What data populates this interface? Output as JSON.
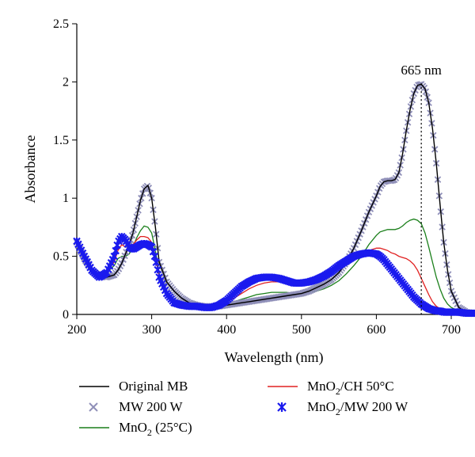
{
  "chart_data": {
    "type": "line",
    "xlabel": "Wavelength (nm)",
    "ylabel": "Absorbance",
    "xlim": [
      200,
      750
    ],
    "ylim": [
      0,
      2.5
    ],
    "xticks": [
      "200",
      "300",
      "400",
      "500",
      "600",
      "700"
    ],
    "yticks": [
      "0",
      "0.5",
      "1",
      "1.5",
      "2",
      "2.5"
    ],
    "annotation": {
      "text": "665 nm",
      "x": 660,
      "y": 1.96
    },
    "x": [
      200,
      210,
      220,
      230,
      240,
      250,
      255,
      260,
      265,
      270,
      275,
      280,
      285,
      290,
      295,
      300,
      305,
      310,
      320,
      330,
      340,
      350,
      360,
      370,
      380,
      390,
      400,
      410,
      420,
      430,
      440,
      450,
      460,
      470,
      480,
      490,
      500,
      510,
      520,
      530,
      540,
      550,
      560,
      570,
      580,
      590,
      600,
      605,
      610,
      615,
      620,
      625,
      630,
      635,
      640,
      645,
      650,
      655,
      660,
      665,
      670,
      675,
      680,
      685,
      690,
      695,
      700,
      710,
      720,
      730,
      740,
      750
    ],
    "series": [
      {
        "name": "Original MB",
        "color": "#000000",
        "style": "line",
        "values": [
          0.62,
          0.48,
          0.38,
          0.33,
          0.32,
          0.34,
          0.38,
          0.44,
          0.52,
          0.6,
          0.7,
          0.84,
          0.98,
          1.08,
          1.11,
          1.0,
          0.75,
          0.45,
          0.28,
          0.2,
          0.14,
          0.1,
          0.08,
          0.07,
          0.07,
          0.07,
          0.08,
          0.09,
          0.1,
          0.11,
          0.12,
          0.13,
          0.14,
          0.15,
          0.16,
          0.17,
          0.18,
          0.2,
          0.23,
          0.26,
          0.3,
          0.36,
          0.45,
          0.57,
          0.72,
          0.88,
          1.02,
          1.1,
          1.14,
          1.15,
          1.15,
          1.16,
          1.22,
          1.38,
          1.58,
          1.76,
          1.9,
          1.97,
          1.98,
          1.94,
          1.82,
          1.6,
          1.3,
          0.95,
          0.62,
          0.38,
          0.2,
          0.06,
          0.02,
          0.01,
          0.01,
          0.01
        ]
      },
      {
        "name": "MW 200 W",
        "color": "#8f8fb8",
        "style": "marker-x",
        "values": [
          0.62,
          0.48,
          0.38,
          0.33,
          0.32,
          0.34,
          0.38,
          0.44,
          0.52,
          0.6,
          0.7,
          0.84,
          0.98,
          1.08,
          1.11,
          1.0,
          0.75,
          0.45,
          0.28,
          0.2,
          0.14,
          0.1,
          0.08,
          0.07,
          0.07,
          0.07,
          0.08,
          0.09,
          0.1,
          0.11,
          0.12,
          0.13,
          0.14,
          0.15,
          0.16,
          0.17,
          0.18,
          0.2,
          0.23,
          0.26,
          0.3,
          0.36,
          0.45,
          0.57,
          0.72,
          0.88,
          1.02,
          1.1,
          1.14,
          1.15,
          1.15,
          1.16,
          1.22,
          1.38,
          1.58,
          1.76,
          1.9,
          1.97,
          1.98,
          1.94,
          1.82,
          1.6,
          1.3,
          0.95,
          0.62,
          0.38,
          0.2,
          0.06,
          0.02,
          0.01,
          0.01,
          0.01
        ]
      },
      {
        "name": "MnO2 (25°C)",
        "color": "#1a7f1a",
        "style": "line",
        "values": [
          0.62,
          0.48,
          0.38,
          0.34,
          0.36,
          0.42,
          0.48,
          0.5,
          0.5,
          0.52,
          0.58,
          0.66,
          0.72,
          0.76,
          0.75,
          0.7,
          0.55,
          0.35,
          0.2,
          0.13,
          0.09,
          0.07,
          0.06,
          0.06,
          0.07,
          0.08,
          0.09,
          0.11,
          0.13,
          0.15,
          0.17,
          0.18,
          0.19,
          0.19,
          0.19,
          0.18,
          0.18,
          0.19,
          0.2,
          0.22,
          0.25,
          0.29,
          0.35,
          0.42,
          0.5,
          0.6,
          0.68,
          0.71,
          0.72,
          0.73,
          0.73,
          0.73,
          0.74,
          0.76,
          0.79,
          0.81,
          0.82,
          0.81,
          0.78,
          0.7,
          0.58,
          0.45,
          0.32,
          0.22,
          0.14,
          0.09,
          0.06,
          0.03,
          0.02,
          0.01,
          0.01,
          0.01
        ]
      },
      {
        "name": "MnO2/CH 50°C",
        "color": "#e02020",
        "style": "line",
        "values": [
          0.62,
          0.48,
          0.38,
          0.34,
          0.37,
          0.45,
          0.55,
          0.6,
          0.58,
          0.57,
          0.6,
          0.64,
          0.67,
          0.67,
          0.66,
          0.62,
          0.5,
          0.32,
          0.19,
          0.12,
          0.08,
          0.06,
          0.06,
          0.06,
          0.07,
          0.09,
          0.11,
          0.14,
          0.18,
          0.22,
          0.25,
          0.27,
          0.28,
          0.28,
          0.28,
          0.27,
          0.27,
          0.28,
          0.3,
          0.32,
          0.35,
          0.39,
          0.43,
          0.48,
          0.52,
          0.55,
          0.57,
          0.57,
          0.56,
          0.55,
          0.53,
          0.52,
          0.5,
          0.49,
          0.48,
          0.46,
          0.43,
          0.38,
          0.31,
          0.24,
          0.17,
          0.11,
          0.07,
          0.05,
          0.03,
          0.02,
          0.02,
          0.01,
          0.01,
          0.01,
          0.01,
          0.01
        ]
      },
      {
        "name": "MnO2/MW 200 W",
        "color": "#1a1aee",
        "style": "marker-star",
        "values": [
          0.63,
          0.5,
          0.38,
          0.32,
          0.36,
          0.5,
          0.62,
          0.67,
          0.64,
          0.58,
          0.56,
          0.58,
          0.6,
          0.61,
          0.6,
          0.58,
          0.48,
          0.32,
          0.18,
          0.1,
          0.08,
          0.07,
          0.07,
          0.06,
          0.06,
          0.08,
          0.12,
          0.18,
          0.24,
          0.28,
          0.31,
          0.32,
          0.32,
          0.31,
          0.29,
          0.27,
          0.27,
          0.28,
          0.3,
          0.33,
          0.37,
          0.42,
          0.46,
          0.5,
          0.52,
          0.53,
          0.52,
          0.5,
          0.47,
          0.43,
          0.39,
          0.35,
          0.31,
          0.27,
          0.23,
          0.19,
          0.15,
          0.12,
          0.09,
          0.07,
          0.05,
          0.04,
          0.03,
          0.03,
          0.02,
          0.02,
          0.02,
          0.02,
          0.01,
          0.01,
          0.01,
          0.01
        ]
      }
    ],
    "legend": {
      "placement": "bottom",
      "entries": [
        {
          "label": "Original MB",
          "sub": "",
          "rest": "",
          "series": 0
        },
        {
          "label": "MnO",
          "sub": "2",
          "rest": "/CH 50°C",
          "series": 3
        },
        {
          "label": "MW 200 W",
          "sub": "",
          "rest": "",
          "series": 1
        },
        {
          "label": "MnO",
          "sub": "2",
          "rest": "/MW 200 W",
          "series": 4
        },
        {
          "label": "MnO",
          "sub": "2",
          "rest": " (25°C)",
          "series": 2
        }
      ]
    }
  }
}
